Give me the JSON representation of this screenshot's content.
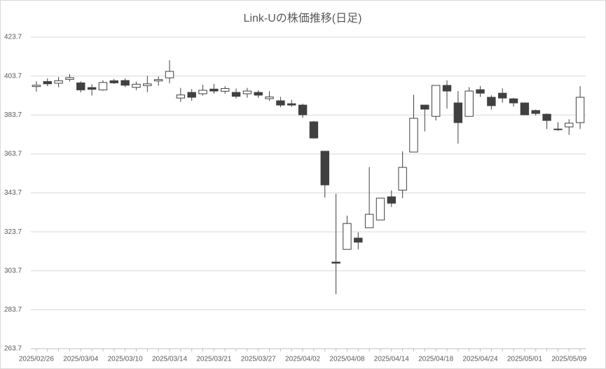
{
  "chart_data": {
    "type": "candlestick",
    "title": "Link-Uの株価推移(日足)",
    "categories": [
      "2025/02/26",
      null,
      null,
      null,
      "2025/03/04",
      null,
      null,
      null,
      "2025/03/10",
      null,
      null,
      null,
      "2025/03/14",
      null,
      null,
      null,
      "2025/03/21",
      null,
      null,
      null,
      "2025/03/27",
      null,
      null,
      null,
      "2025/04/02",
      null,
      null,
      null,
      "2025/04/08",
      null,
      null,
      null,
      "2025/04/14",
      null,
      null,
      null,
      "2025/04/18",
      null,
      null,
      null,
      "2025/04/24",
      null,
      null,
      null,
      "2025/05/01",
      null,
      null,
      null,
      "2025/05/09",
      null
    ],
    "series": {
      "open": [
        398.3,
        400.9,
        400.0,
        402.0,
        400.2,
        397.8,
        396.6,
        401.3,
        401.4,
        397.9,
        398.8,
        401.2,
        402.8,
        392.4,
        395.3,
        394.6,
        397.0,
        395.9,
        395.3,
        394.6,
        395.3,
        392.1,
        391.0,
        389.5,
        388.8,
        380.2,
        365.1,
        308.2,
        314.7,
        320.5,
        325.8,
        329.8,
        341.7,
        345.1,
        364.7,
        388.8,
        383.0,
        398.9,
        389.9,
        383.0,
        396.7,
        392.8,
        394.9,
        392.0,
        389.9,
        386.0,
        384.1,
        376.2,
        377.6,
        379.8
      ],
      "high": [
        401.0,
        402.5,
        403.2,
        404.7,
        401.0,
        399.5,
        401.5,
        402.2,
        402.5,
        400.8,
        403.8,
        403.5,
        411.8,
        397.6,
        397.0,
        399.2,
        399.7,
        398.5,
        397.3,
        397.6,
        396.4,
        395.9,
        393.0,
        391.5,
        389.5,
        380.6,
        365.1,
        343.3,
        332.0,
        323.5,
        357.0,
        341.0,
        345.0,
        365.0,
        394.1,
        389.0,
        398.9,
        401.5,
        396.0,
        398.0,
        398.6,
        393.8,
        397.4,
        392.5,
        390.0,
        386.5,
        384.5,
        380.0,
        381.5,
        398.5
      ],
      "low": [
        395.7,
        398.5,
        398.0,
        400.9,
        395.3,
        393.7,
        396.2,
        399.6,
        398.0,
        396.5,
        395.4,
        398.8,
        400.0,
        390.4,
        391.0,
        393.7,
        394.7,
        394.6,
        392.2,
        392.6,
        392.5,
        391.0,
        387.7,
        387.9,
        382.3,
        371.5,
        341.3,
        291.7,
        314.7,
        314.7,
        325.8,
        329.8,
        336.5,
        341.0,
        364.7,
        375.3,
        380.9,
        387.0,
        369.0,
        383.0,
        393.0,
        386.5,
        390.0,
        388.0,
        383.8,
        383.5,
        376.5,
        375.6,
        373.5,
        376.5
      ],
      "close": [
        399.0,
        399.7,
        401.3,
        402.9,
        396.6,
        396.9,
        400.4,
        400.2,
        399.0,
        399.5,
        399.7,
        401.9,
        406.1,
        394.0,
        392.8,
        396.4,
        396.0,
        397.3,
        393.3,
        396.0,
        393.9,
        393.0,
        388.8,
        388.8,
        383.8,
        371.9,
        347.8,
        307.6,
        328.0,
        318.4,
        332.7,
        341.0,
        338.4,
        356.8,
        382.0,
        386.7,
        398.9,
        396.0,
        379.8,
        396.0,
        394.9,
        388.5,
        392.4,
        389.9,
        383.8,
        384.5,
        380.9,
        376.5,
        379.5,
        392.8
      ],
      "up_color": "#ffffff",
      "down_color": "#404040",
      "edge_color": "#404040"
    },
    "ylim": [
      263.7,
      423.7
    ],
    "yticks": [
      263.7,
      283.7,
      303.7,
      323.7,
      343.7,
      363.7,
      383.7,
      403.7,
      423.7
    ],
    "grid": true
  }
}
